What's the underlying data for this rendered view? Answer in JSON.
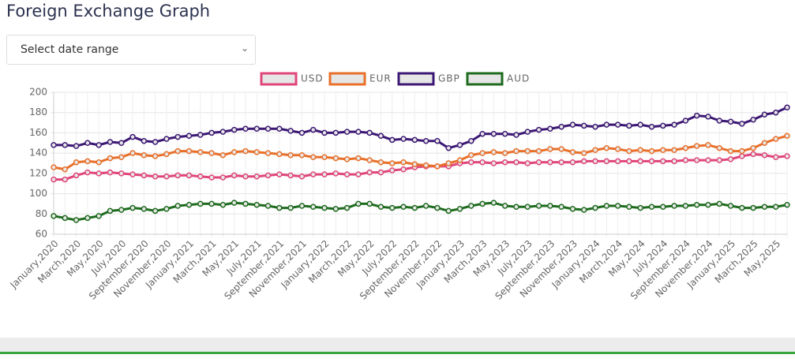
{
  "page_title": "Foreign Exchange Graph",
  "select_placeholder": "Select date range",
  "chart_data": {
    "type": "line",
    "categories": [
      "January,2020",
      null,
      "March,2020",
      null,
      "May,2020",
      null,
      "July,2020",
      null,
      "September,2020",
      null,
      "November,2020",
      null,
      "January,2021",
      null,
      "March,2021",
      null,
      "May,2021",
      null,
      "July,2021",
      null,
      "September,2021",
      null,
      "November,2021",
      null,
      "January,2022",
      null,
      "March,2022",
      null,
      "May,2022",
      null,
      "July,2022",
      null,
      "September,2022",
      null,
      "November,2022",
      null,
      "January,2023",
      null,
      "March,2023",
      null,
      "May,2023",
      null,
      "July,2023",
      null,
      "September,2023",
      null,
      "November,2023",
      null,
      "January,2024",
      null,
      "March,2024",
      null,
      "May,2024",
      null,
      "July,2024",
      null,
      "September,2024",
      null,
      "November,2024",
      null,
      "January,2025",
      null,
      "March,2025",
      null,
      "May,2025",
      null
    ],
    "series": [
      {
        "name": "USD",
        "color": "#e0457b",
        "values": [
          114,
          114,
          118,
          121,
          120,
          121,
          120,
          119,
          118,
          117,
          117,
          118,
          118,
          117,
          116,
          116,
          118,
          117,
          117,
          118,
          119,
          118,
          117,
          119,
          119,
          120,
          119,
          119,
          121,
          121,
          123,
          124,
          126,
          127,
          127,
          127,
          130,
          131,
          131,
          130,
          131,
          131,
          130,
          131,
          131,
          131,
          131,
          132,
          132,
          132,
          132,
          132,
          132,
          132,
          132,
          132,
          133,
          133,
          133,
          133,
          134,
          137,
          139,
          138,
          136,
          137
        ]
      },
      {
        "name": "EUR",
        "color": "#e8702a",
        "values": [
          126,
          124,
          131,
          132,
          131,
          135,
          136,
          140,
          138,
          137,
          139,
          142,
          142,
          141,
          140,
          138,
          141,
          142,
          141,
          140,
          139,
          138,
          138,
          136,
          136,
          135,
          134,
          135,
          133,
          131,
          130,
          131,
          129,
          128,
          127,
          130,
          133,
          138,
          140,
          141,
          140,
          142,
          142,
          142,
          144,
          144,
          141,
          140,
          143,
          145,
          144,
          142,
          143,
          142,
          143,
          143,
          145,
          147,
          148,
          145,
          142,
          142,
          145,
          150,
          154,
          157
        ]
      },
      {
        "name": "GBP",
        "color": "#3c1874",
        "values": [
          148,
          148,
          147,
          150,
          148,
          151,
          150,
          156,
          152,
          151,
          154,
          156,
          157,
          158,
          160,
          161,
          163,
          164,
          164,
          164,
          164,
          162,
          160,
          163,
          160,
          160,
          161,
          161,
          160,
          157,
          153,
          154,
          153,
          152,
          152,
          145,
          148,
          152,
          159,
          159,
          159,
          158,
          161,
          163,
          164,
          166,
          168,
          167,
          166,
          168,
          168,
          167,
          168,
          166,
          167,
          168,
          172,
          177,
          176,
          172,
          171,
          169,
          173,
          178,
          180,
          185
        ]
      },
      {
        "name": "AUD",
        "color": "#1e6b1e",
        "values": [
          78,
          76,
          74,
          76,
          78,
          83,
          84,
          86,
          85,
          83,
          85,
          88,
          89,
          90,
          90,
          89,
          91,
          90,
          89,
          88,
          86,
          86,
          88,
          87,
          86,
          85,
          86,
          90,
          90,
          87,
          86,
          87,
          86,
          88,
          86,
          83,
          85,
          88,
          90,
          91,
          88,
          87,
          87,
          88,
          88,
          87,
          85,
          84,
          86,
          88,
          88,
          87,
          86,
          87,
          87,
          88,
          88,
          89,
          89,
          90,
          88,
          86,
          86,
          87,
          87,
          89
        ]
      }
    ],
    "ylim": [
      60,
      200
    ],
    "yticks": [
      60,
      80,
      100,
      120,
      140,
      160,
      180,
      200
    ],
    "grid": true
  }
}
